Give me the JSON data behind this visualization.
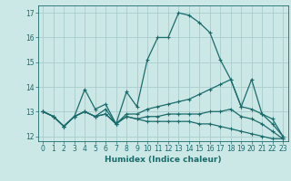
{
  "title": "",
  "xlabel": "Humidex (Indice chaleur)",
  "ylabel": "",
  "background_color": "#cce8e6",
  "grid_color": "#aacccc",
  "line_color": "#1a6b6b",
  "xlim": [
    -0.5,
    23.5
  ],
  "ylim": [
    11.8,
    17.3
  ],
  "xticks": [
    0,
    1,
    2,
    3,
    4,
    5,
    6,
    7,
    8,
    9,
    10,
    11,
    12,
    13,
    14,
    15,
    16,
    17,
    18,
    19,
    20,
    21,
    22,
    23
  ],
  "yticks": [
    12,
    13,
    14,
    15,
    16,
    17
  ],
  "lines": [
    {
      "x": [
        0,
        1,
        2,
        3,
        4,
        5,
        6,
        7,
        8,
        9,
        10,
        11,
        12,
        13,
        14,
        15,
        16,
        17,
        18,
        19,
        20,
        21,
        22,
        23
      ],
      "y": [
        13.0,
        12.8,
        12.4,
        12.8,
        13.9,
        13.1,
        13.3,
        12.5,
        13.8,
        13.2,
        15.1,
        16.0,
        16.0,
        17.0,
        16.9,
        16.6,
        16.2,
        15.1,
        14.3,
        13.2,
        14.3,
        12.9,
        12.7,
        12.0
      ]
    },
    {
      "x": [
        0,
        1,
        2,
        3,
        4,
        5,
        6,
        7,
        8,
        9,
        10,
        11,
        12,
        13,
        14,
        15,
        16,
        17,
        18,
        19,
        20,
        21,
        22,
        23
      ],
      "y": [
        13.0,
        12.8,
        12.4,
        12.8,
        13.0,
        12.8,
        13.1,
        12.5,
        12.9,
        12.9,
        13.1,
        13.2,
        13.3,
        13.4,
        13.5,
        13.7,
        13.9,
        14.1,
        14.3,
        13.2,
        13.1,
        12.9,
        12.5,
        12.0
      ]
    },
    {
      "x": [
        0,
        1,
        2,
        3,
        4,
        5,
        6,
        7,
        8,
        9,
        10,
        11,
        12,
        13,
        14,
        15,
        16,
        17,
        18,
        19,
        20,
        21,
        22,
        23
      ],
      "y": [
        13.0,
        12.8,
        12.4,
        12.8,
        13.0,
        12.8,
        12.9,
        12.5,
        12.8,
        12.7,
        12.8,
        12.8,
        12.9,
        12.9,
        12.9,
        12.9,
        13.0,
        13.0,
        13.1,
        12.8,
        12.7,
        12.5,
        12.2,
        11.9
      ]
    },
    {
      "x": [
        0,
        1,
        2,
        3,
        4,
        5,
        6,
        7,
        8,
        9,
        10,
        11,
        12,
        13,
        14,
        15,
        16,
        17,
        18,
        19,
        20,
        21,
        22,
        23
      ],
      "y": [
        13.0,
        12.8,
        12.4,
        12.8,
        13.0,
        12.8,
        12.9,
        12.5,
        12.8,
        12.7,
        12.6,
        12.6,
        12.6,
        12.6,
        12.6,
        12.5,
        12.5,
        12.4,
        12.3,
        12.2,
        12.1,
        12.0,
        11.9,
        11.9
      ]
    }
  ],
  "figsize": [
    3.2,
    2.0
  ],
  "dpi": 100,
  "xlabel_fontsize": 6.5,
  "tick_fontsize": 5.5,
  "linewidth": 0.9,
  "marker_size": 3
}
